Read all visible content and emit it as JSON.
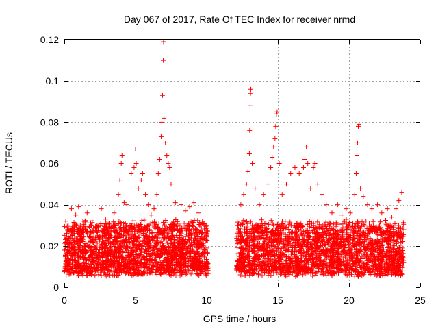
{
  "chart_data": {
    "type": "scatter",
    "title": "Day 067 of 2017, Rate Of TEC Index for receiver nrmd",
    "xlabel": "GPS time / hours",
    "ylabel": "ROTI / TECUs",
    "xlim": [
      0,
      25
    ],
    "ylim": [
      0,
      0.12
    ],
    "x_ticks": [
      "0",
      "5",
      "10",
      "15",
      "20",
      "25"
    ],
    "y_ticks": [
      "0",
      "0.02",
      "0.04",
      "0.06",
      "0.08",
      "0.1",
      "0.12"
    ],
    "grid": true,
    "marker": "+",
    "color": "#ff0000",
    "data_gap_hours": [
      10.1,
      12.1
    ],
    "series": [
      {
        "points": [
          [
            0.1,
            0.032
          ],
          [
            0.3,
            0.028
          ],
          [
            0.5,
            0.038
          ],
          [
            0.8,
            0.035
          ],
          [
            1.0,
            0.039
          ],
          [
            1.3,
            0.032
          ],
          [
            1.6,
            0.036
          ],
          [
            1.9,
            0.03
          ],
          [
            2.2,
            0.029
          ],
          [
            2.6,
            0.038
          ],
          [
            2.9,
            0.033
          ],
          [
            3.2,
            0.031
          ],
          [
            3.5,
            0.036
          ],
          [
            3.8,
            0.045
          ],
          [
            3.9,
            0.052
          ],
          [
            4.0,
            0.06
          ],
          [
            4.05,
            0.064
          ],
          [
            4.2,
            0.041
          ],
          [
            4.4,
            0.04
          ],
          [
            4.7,
            0.055
          ],
          [
            4.9,
            0.058
          ],
          [
            5.0,
            0.067
          ],
          [
            5.05,
            0.06
          ],
          [
            5.2,
            0.048
          ],
          [
            5.4,
            0.052
          ],
          [
            5.5,
            0.055
          ],
          [
            5.7,
            0.045
          ],
          [
            5.9,
            0.04
          ],
          [
            6.1,
            0.035
          ],
          [
            6.3,
            0.038
          ],
          [
            6.5,
            0.045
          ],
          [
            6.6,
            0.055
          ],
          [
            6.7,
            0.062
          ],
          [
            6.8,
            0.073
          ],
          [
            6.85,
            0.08
          ],
          [
            6.9,
            0.093
          ],
          [
            6.95,
            0.11
          ],
          [
            6.97,
            0.119
          ],
          [
            7.0,
            0.082
          ],
          [
            7.1,
            0.07
          ],
          [
            7.2,
            0.064
          ],
          [
            7.3,
            0.06
          ],
          [
            7.4,
            0.058
          ],
          [
            7.5,
            0.05
          ],
          [
            7.8,
            0.041
          ],
          [
            8.2,
            0.04
          ],
          [
            8.5,
            0.037
          ],
          [
            8.8,
            0.039
          ],
          [
            9.1,
            0.041
          ],
          [
            9.4,
            0.036
          ],
          [
            9.7,
            0.032
          ],
          [
            10.0,
            0.03
          ],
          [
            12.2,
            0.03
          ],
          [
            12.4,
            0.04
          ],
          [
            12.6,
            0.045
          ],
          [
            12.8,
            0.05
          ],
          [
            12.9,
            0.056
          ],
          [
            13.0,
            0.065
          ],
          [
            13.02,
            0.076
          ],
          [
            13.05,
            0.088
          ],
          [
            13.08,
            0.094
          ],
          [
            13.1,
            0.096
          ],
          [
            13.2,
            0.06
          ],
          [
            13.4,
            0.048
          ],
          [
            13.7,
            0.04
          ],
          [
            14.0,
            0.045
          ],
          [
            14.3,
            0.05
          ],
          [
            14.5,
            0.058
          ],
          [
            14.6,
            0.063
          ],
          [
            14.7,
            0.068
          ],
          [
            14.8,
            0.072
          ],
          [
            14.85,
            0.078
          ],
          [
            14.9,
            0.084
          ],
          [
            14.95,
            0.085
          ],
          [
            15.1,
            0.06
          ],
          [
            15.3,
            0.045
          ],
          [
            15.6,
            0.05
          ],
          [
            15.9,
            0.055
          ],
          [
            16.2,
            0.058
          ],
          [
            16.5,
            0.055
          ],
          [
            16.8,
            0.058
          ],
          [
            16.9,
            0.062
          ],
          [
            17.0,
            0.068
          ],
          [
            17.1,
            0.06
          ],
          [
            17.3,
            0.048
          ],
          [
            17.5,
            0.058
          ],
          [
            17.6,
            0.06
          ],
          [
            17.8,
            0.05
          ],
          [
            18.1,
            0.045
          ],
          [
            18.4,
            0.04
          ],
          [
            18.8,
            0.036
          ],
          [
            19.2,
            0.04
          ],
          [
            19.5,
            0.035
          ],
          [
            19.8,
            0.038
          ],
          [
            20.1,
            0.036
          ],
          [
            20.4,
            0.045
          ],
          [
            20.5,
            0.055
          ],
          [
            20.55,
            0.064
          ],
          [
            20.6,
            0.07
          ],
          [
            20.65,
            0.078
          ],
          [
            20.7,
            0.079
          ],
          [
            20.8,
            0.048
          ],
          [
            21.0,
            0.044
          ],
          [
            21.3,
            0.04
          ],
          [
            21.6,
            0.038
          ],
          [
            22.0,
            0.04
          ],
          [
            22.3,
            0.036
          ],
          [
            22.7,
            0.038
          ],
          [
            23.0,
            0.034
          ],
          [
            23.3,
            0.038
          ],
          [
            23.5,
            0.042
          ],
          [
            23.7,
            0.046
          ]
        ]
      }
    ]
  }
}
